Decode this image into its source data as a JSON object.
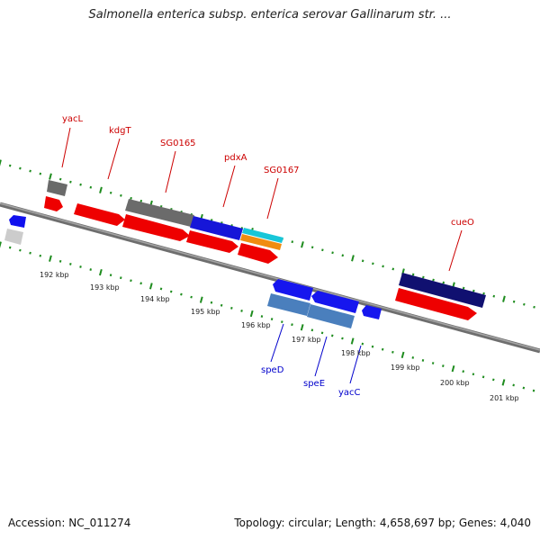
{
  "title": "Salmonella enterica subsp. enterica serovar Gallinarum str. ...",
  "footer": {
    "accession": "Accession: NC_011274",
    "summary": "Topology: circular; Length: 4,658,697 bp; Genes: 4,040"
  },
  "colors": {
    "forward_label": "#cc0000",
    "reverse_label": "#0000cc",
    "tick": "#1e8c1e",
    "backbone": "#808080"
  },
  "kbp_labels": [
    "192 kbp",
    "193 kbp",
    "194 kbp",
    "195 kbp",
    "196 kbp",
    "197 kbp",
    "198 kbp",
    "199 kbp",
    "200 kbp",
    "201 kbp"
  ],
  "forward_genes": [
    "yacL",
    "kdgT",
    "SG0165",
    "pdxA",
    "SG0167",
    "cueO"
  ],
  "reverse_genes": [
    "speD",
    "speE",
    "yacC"
  ]
}
